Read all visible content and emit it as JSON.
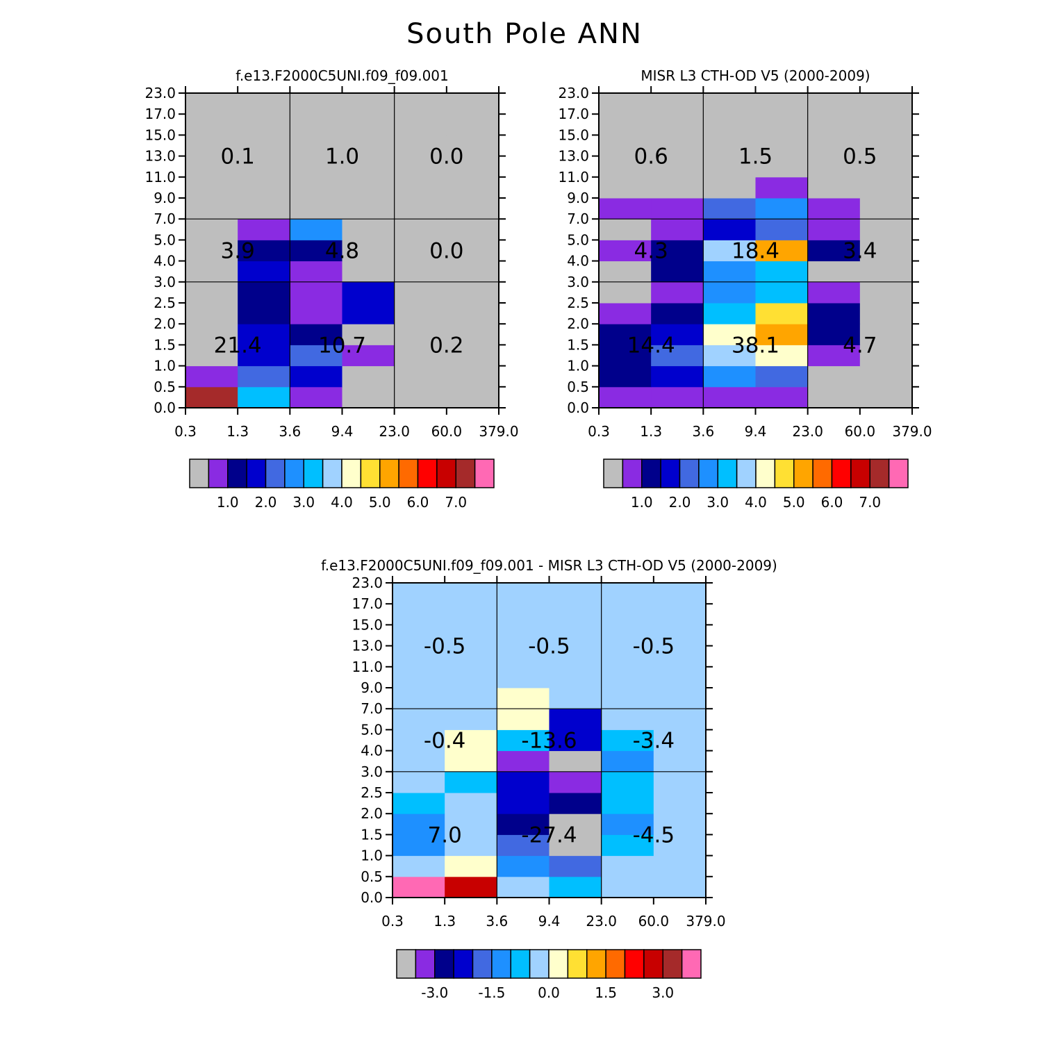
{
  "main_title": "South Pole ANN",
  "chart_data": [
    {
      "type": "heatmap",
      "title": "f.e13.F2000C5UNI.f09_f09.001",
      "x_ticks": [
        "0.3",
        "1.3",
        "3.6",
        "9.4",
        "23.0",
        "60.0",
        "379.0"
      ],
      "y_ticks": [
        "0.0",
        "0.5",
        "1.0",
        "1.5",
        "2.0",
        "2.5",
        "3.0",
        "4.0",
        "5.0",
        "7.0",
        "9.0",
        "11.0",
        "13.0",
        "15.0",
        "17.0",
        "23.0"
      ],
      "cells": [
        [
          14,
          6,
          1,
          0,
          0,
          0
        ],
        [
          1,
          4,
          3,
          0,
          0,
          0
        ],
        [
          0,
          3,
          4,
          1,
          0,
          0
        ],
        [
          0,
          3,
          2,
          0,
          0,
          0
        ],
        [
          0,
          2,
          1,
          3,
          0,
          0
        ],
        [
          0,
          2,
          1,
          3,
          0,
          0
        ],
        [
          0,
          3,
          1,
          0,
          0,
          0
        ],
        [
          0,
          2,
          2,
          0,
          0,
          0
        ],
        [
          0,
          1,
          5,
          0,
          0,
          0
        ],
        [
          0,
          0,
          0,
          0,
          0,
          0
        ],
        [
          0,
          0,
          0,
          0,
          0,
          0
        ],
        [
          0,
          0,
          0,
          0,
          0,
          0
        ],
        [
          0,
          0,
          0,
          0,
          0,
          0
        ],
        [
          0,
          0,
          0,
          0,
          0,
          0
        ],
        [
          0,
          0,
          0,
          0,
          0,
          0
        ]
      ],
      "group_values": [
        [
          "21.4",
          "10.7",
          "0.2"
        ],
        [
          "3.9",
          "4.8",
          "0.0"
        ],
        [
          "0.1",
          "1.0",
          "0.0"
        ]
      ],
      "colorbar": {
        "colors": [
          "#bebebe",
          "#8a2be2",
          "#00008b",
          "#0000cd",
          "#4169e1",
          "#1e90ff",
          "#00bfff",
          "#a0d2ff",
          "#ffffcc",
          "#ffe033",
          "#ffa500",
          "#ff6a00",
          "#ff0000",
          "#c80000",
          "#a52a2a",
          "#ff69b4"
        ],
        "labels": [
          "1.0",
          "2.0",
          "3.0",
          "4.0",
          "5.0",
          "6.0",
          "7.0"
        ]
      }
    },
    {
      "type": "heatmap",
      "title": "MISR L3 CTH-OD V5 (2000-2009)",
      "x_ticks": [
        "0.3",
        "1.3",
        "3.6",
        "9.4",
        "23.0",
        "60.0",
        "379.0"
      ],
      "y_ticks": [
        "0.0",
        "0.5",
        "1.0",
        "1.5",
        "2.0",
        "2.5",
        "3.0",
        "4.0",
        "5.0",
        "7.0",
        "9.0",
        "11.0",
        "13.0",
        "15.0",
        "17.0",
        "23.0"
      ],
      "cells": [
        [
          1,
          1,
          1,
          1,
          0,
          0
        ],
        [
          2,
          3,
          5,
          4,
          0,
          0
        ],
        [
          2,
          4,
          7,
          8,
          1,
          0
        ],
        [
          2,
          3,
          8,
          10,
          2,
          0
        ],
        [
          1,
          2,
          6,
          9,
          2,
          0
        ],
        [
          0,
          1,
          5,
          6,
          1,
          0
        ],
        [
          0,
          2,
          5,
          6,
          0,
          0
        ],
        [
          1,
          2,
          7,
          10,
          2,
          0
        ],
        [
          0,
          1,
          3,
          4,
          1,
          0
        ],
        [
          1,
          1,
          4,
          5,
          1,
          0
        ],
        [
          0,
          0,
          0,
          1,
          0,
          0
        ],
        [
          0,
          0,
          0,
          0,
          0,
          0
        ],
        [
          0,
          0,
          0,
          0,
          0,
          0
        ],
        [
          0,
          0,
          0,
          0,
          0,
          0
        ],
        [
          0,
          0,
          0,
          0,
          0,
          0
        ]
      ],
      "group_values": [
        [
          "14.4",
          "38.1",
          "4.7"
        ],
        [
          "4.3",
          "18.4",
          "3.4"
        ],
        [
          "0.6",
          "1.5",
          "0.5"
        ]
      ],
      "colorbar": {
        "colors": [
          "#bebebe",
          "#8a2be2",
          "#00008b",
          "#0000cd",
          "#4169e1",
          "#1e90ff",
          "#00bfff",
          "#a0d2ff",
          "#ffffcc",
          "#ffe033",
          "#ffa500",
          "#ff6a00",
          "#ff0000",
          "#c80000",
          "#a52a2a",
          "#ff69b4"
        ],
        "labels": [
          "1.0",
          "2.0",
          "3.0",
          "4.0",
          "5.0",
          "6.0",
          "7.0"
        ]
      }
    },
    {
      "type": "heatmap",
      "title": "f.e13.F2000C5UNI.f09_f09.001 - MISR L3 CTH-OD V5 (2000-2009)",
      "x_ticks": [
        "0.3",
        "1.3",
        "3.6",
        "9.4",
        "23.0",
        "60.0",
        "379.0"
      ],
      "y_ticks": [
        "0.0",
        "0.5",
        "1.0",
        "1.5",
        "2.0",
        "2.5",
        "3.0",
        "4.0",
        "5.0",
        "7.0",
        "9.0",
        "11.0",
        "13.0",
        "15.0",
        "17.0",
        "23.0"
      ],
      "cells": [
        [
          15,
          13,
          7,
          6,
          7,
          7
        ],
        [
          7,
          8,
          5,
          4,
          7,
          7
        ],
        [
          5,
          7,
          4,
          0,
          6,
          7
        ],
        [
          5,
          7,
          2,
          0,
          5,
          7
        ],
        [
          6,
          7,
          3,
          2,
          6,
          7
        ],
        [
          7,
          6,
          3,
          1,
          6,
          7
        ],
        [
          7,
          8,
          1,
          0,
          5,
          7
        ],
        [
          7,
          8,
          6,
          3,
          6,
          7
        ],
        [
          7,
          7,
          8,
          3,
          7,
          7
        ],
        [
          7,
          7,
          8,
          7,
          7,
          7
        ],
        [
          7,
          7,
          7,
          7,
          7,
          7
        ],
        [
          7,
          7,
          7,
          7,
          7,
          7
        ],
        [
          7,
          7,
          7,
          7,
          7,
          7
        ],
        [
          7,
          7,
          7,
          7,
          7,
          7
        ],
        [
          7,
          7,
          7,
          7,
          7,
          7
        ]
      ],
      "group_values": [
        [
          "7.0",
          "-27.4",
          "-4.5"
        ],
        [
          "-0.4",
          "-13.6",
          "-3.4"
        ],
        [
          "-0.5",
          "-0.5",
          "-0.5"
        ]
      ],
      "colorbar": {
        "colors": [
          "#bebebe",
          "#8a2be2",
          "#00008b",
          "#0000cd",
          "#4169e1",
          "#1e90ff",
          "#00bfff",
          "#a0d2ff",
          "#ffffcc",
          "#ffe033",
          "#ffa500",
          "#ff6a00",
          "#ff0000",
          "#c80000",
          "#a52a2a",
          "#ff69b4"
        ],
        "labels": [
          "-3.0",
          "-1.5",
          "0.0",
          "1.5",
          "3.0"
        ]
      }
    }
  ]
}
